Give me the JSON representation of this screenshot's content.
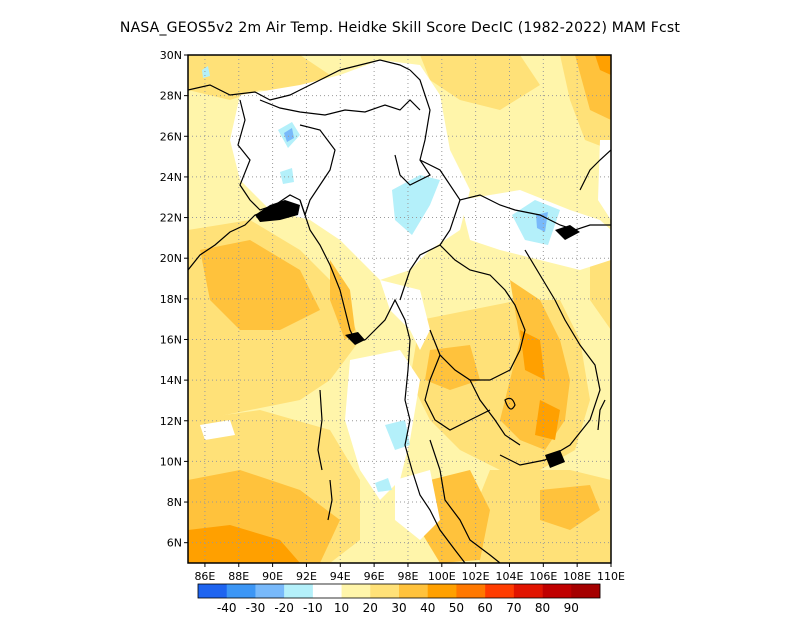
{
  "title": "NASA_GEOS5v2  2m Air Temp. Heidke Skill Score DecIC (1982-2022) MAM Fcst",
  "map": {
    "lon_range": [
      85,
      110
    ],
    "lat_range": [
      5,
      30
    ],
    "lat_ticks": [
      {
        "v": 30,
        "label": "30N"
      },
      {
        "v": 28,
        "label": "28N"
      },
      {
        "v": 26,
        "label": "26N"
      },
      {
        "v": 24,
        "label": "24N"
      },
      {
        "v": 22,
        "label": "22N"
      },
      {
        "v": 20,
        "label": "20N"
      },
      {
        "v": 18,
        "label": "18N"
      },
      {
        "v": 16,
        "label": "16N"
      },
      {
        "v": 14,
        "label": "14N"
      },
      {
        "v": 12,
        "label": "12N"
      },
      {
        "v": 10,
        "label": "10N"
      },
      {
        "v": 8,
        "label": "8N"
      },
      {
        "v": 6,
        "label": "6N"
      }
    ],
    "lon_ticks": [
      {
        "v": 86,
        "label": "86E"
      },
      {
        "v": 88,
        "label": "88E"
      },
      {
        "v": 90,
        "label": "90E"
      },
      {
        "v": 92,
        "label": "92E"
      },
      {
        "v": 94,
        "label": "94E"
      },
      {
        "v": 96,
        "label": "96E"
      },
      {
        "v": 98,
        "label": "98E"
      },
      {
        "v": 100,
        "label": "100E"
      },
      {
        "v": 102,
        "label": "102E"
      },
      {
        "v": 104,
        "label": "104E"
      },
      {
        "v": 106,
        "label": "106E"
      },
      {
        "v": 108,
        "label": "108E"
      },
      {
        "v": 110,
        "label": "110E"
      }
    ],
    "gridlines": "dotted"
  },
  "colorbar": {
    "colors": [
      "#1e64f0",
      "#3c96f5",
      "#78b9fa",
      "#b4f0fa",
      "#ffffff",
      "#fff5aa",
      "#ffe178",
      "#ffc23c",
      "#ffa000",
      "#ff7800",
      "#ff3c00",
      "#e11400",
      "#c00000",
      "#a50000"
    ],
    "labels": [
      "-40",
      "-30",
      "-20",
      "-10",
      "10",
      "20",
      "30",
      "40",
      "50",
      "60",
      "70",
      "80",
      "90"
    ]
  }
}
